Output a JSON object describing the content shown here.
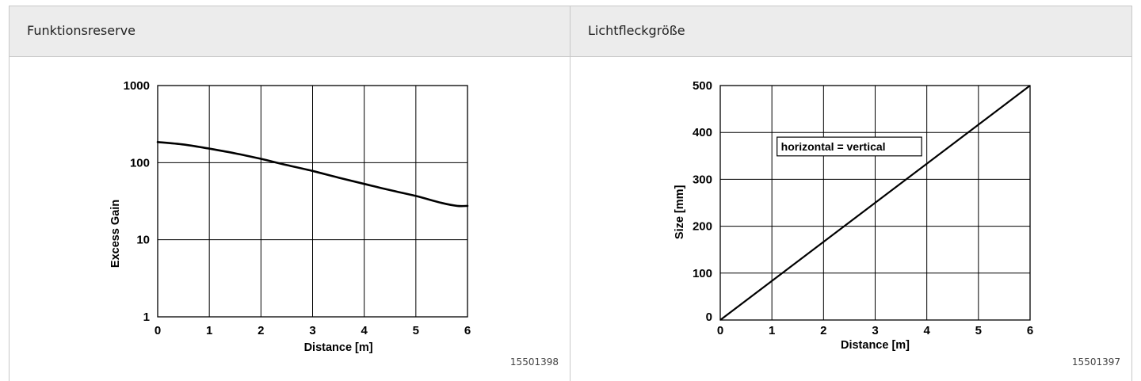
{
  "panels": [
    {
      "title": "Funktionsreserve",
      "figure_id": "15501398"
    },
    {
      "title": "Lichtfleckgröße",
      "figure_id": "15501397"
    }
  ],
  "chart_data": [
    {
      "type": "line",
      "title": "Funktionsreserve",
      "xlabel": "Distance [m]",
      "ylabel": "Excess Gain",
      "x_ticks": [
        "0",
        "1",
        "2",
        "3",
        "4",
        "5",
        "6"
      ],
      "y_ticks": [
        "1",
        "10",
        "100",
        "1000"
      ],
      "xlim": [
        0,
        6
      ],
      "ylim": [
        1,
        1000
      ],
      "yscale": "log",
      "grid": true,
      "series": [
        {
          "x": [
            0,
            0.5,
            1,
            1.5,
            2,
            2.5,
            3,
            3.5,
            4,
            4.5,
            5,
            5.5,
            5.8,
            6
          ],
          "y": [
            185,
            172,
            152,
            132,
            112,
            93,
            78,
            64,
            53,
            44,
            37,
            30,
            27.5,
            27.5
          ]
        }
      ]
    },
    {
      "type": "line",
      "title": "Lichtfleckgröße",
      "xlabel": "Distance [m]",
      "ylabel": "Size [mm]",
      "x_ticks": [
        "1",
        "2",
        "3",
        "4",
        "5",
        "6"
      ],
      "x_origin_label": "0",
      "y_ticks": [
        "0",
        "100",
        "200",
        "300",
        "400",
        "500"
      ],
      "xlim": [
        0,
        6
      ],
      "ylim": [
        0,
        500
      ],
      "grid": true,
      "annotation": "horizontal = vertical",
      "series": [
        {
          "x": [
            0,
            6
          ],
          "y": [
            0,
            500
          ]
        }
      ]
    }
  ]
}
